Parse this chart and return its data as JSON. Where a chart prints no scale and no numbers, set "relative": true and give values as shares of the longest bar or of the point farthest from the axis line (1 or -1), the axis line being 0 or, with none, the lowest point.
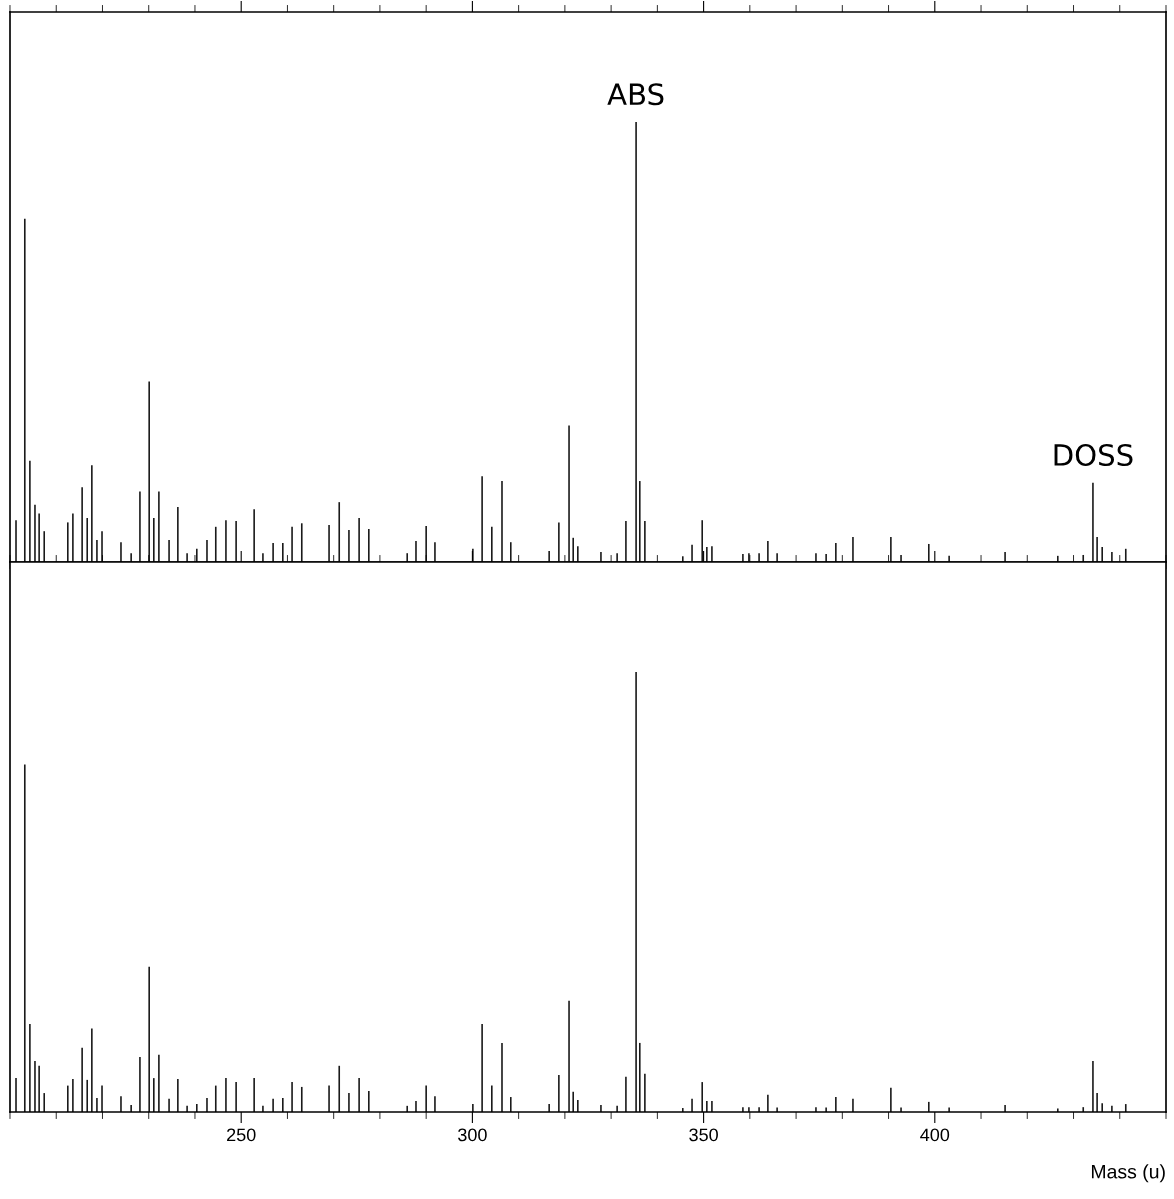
{
  "chart_data": [
    {
      "type": "bar",
      "relative": true,
      "color": "#1a1a1a",
      "xlim": [
        200,
        450
      ],
      "xticks": [
        250,
        300,
        350,
        400
      ],
      "tick_labels": false,
      "x": [
        201.3,
        203.2,
        204.3,
        205.4,
        206.3,
        207.4,
        212.5,
        213.6,
        215.6,
        216.7,
        217.7,
        218.8,
        219.9,
        224.0,
        226.2,
        228.1,
        230.1,
        231.1,
        232.2,
        234.4,
        236.3,
        238.3,
        240.4,
        242.6,
        244.5,
        246.7,
        248.9,
        252.8,
        254.7,
        256.9,
        259.0,
        261.0,
        263.1,
        269.0,
        271.2,
        273.3,
        275.5,
        277.6,
        285.9,
        287.8,
        290.0,
        291.9,
        300.1,
        302.1,
        304.2,
        306.4,
        308.3,
        316.6,
        318.7,
        320.9,
        321.8,
        322.8,
        327.8,
        331.3,
        333.2,
        335.4,
        336.2,
        337.3,
        345.5,
        347.5,
        349.7,
        350.7,
        351.8,
        358.5,
        359.8,
        362.0,
        363.9,
        365.9,
        374.3,
        376.5,
        378.6,
        382.3,
        390.5,
        392.7,
        398.7,
        403.1,
        415.2,
        426.6,
        432.1,
        434.2,
        435.1,
        436.2,
        438.3,
        441.3
      ],
      "values": [
        0.095,
        0.78,
        0.23,
        0.13,
        0.11,
        0.07,
        0.09,
        0.11,
        0.17,
        0.1,
        0.22,
        0.05,
        0.07,
        0.045,
        0.02,
        0.16,
        0.41,
        0.1,
        0.16,
        0.05,
        0.125,
        0.02,
        0.03,
        0.05,
        0.08,
        0.095,
        0.093,
        0.12,
        0.02,
        0.043,
        0.043,
        0.08,
        0.088,
        0.084,
        0.136,
        0.073,
        0.1,
        0.075,
        0.02,
        0.048,
        0.082,
        0.045,
        0.03,
        0.195,
        0.08,
        0.184,
        0.045,
        0.025,
        0.09,
        0.31,
        0.055,
        0.036,
        0.023,
        0.02,
        0.093,
        1.0,
        0.184,
        0.093,
        0.013,
        0.039,
        0.095,
        0.034,
        0.036,
        0.018,
        0.02,
        0.02,
        0.048,
        0.02,
        0.02,
        0.018,
        0.043,
        0.057,
        0.057,
        0.016,
        0.041,
        0.014,
        0.023,
        0.014,
        0.016,
        0.18,
        0.057,
        0.034,
        0.023,
        0.03
      ],
      "annotations": [
        {
          "text": "ABS",
          "x": 335.4,
          "y": 1.0
        },
        {
          "text": "DOSS",
          "x": 434.2,
          "y": 0.18
        }
      ]
    },
    {
      "type": "bar",
      "relative": true,
      "color": "#1a1a1a",
      "xlim": [
        200,
        450
      ],
      "xticks": [
        250,
        300,
        350,
        400
      ],
      "tick_labels": "x",
      "xlabel": "Mass (u)",
      "x": [
        201.3,
        203.2,
        204.3,
        205.4,
        206.3,
        207.4,
        212.5,
        213.6,
        215.6,
        216.7,
        217.7,
        218.8,
        219.9,
        224.0,
        226.2,
        228.1,
        230.1,
        231.1,
        232.2,
        234.4,
        236.3,
        238.3,
        240.4,
        242.6,
        244.5,
        246.7,
        248.9,
        252.8,
        254.7,
        256.9,
        259.0,
        261.0,
        263.1,
        269.0,
        271.2,
        273.3,
        275.5,
        277.6,
        285.9,
        287.8,
        290.0,
        291.9,
        300.1,
        302.1,
        304.2,
        306.4,
        308.3,
        316.6,
        318.7,
        320.9,
        321.8,
        322.8,
        327.8,
        331.3,
        333.2,
        335.4,
        336.2,
        337.3,
        345.5,
        347.5,
        349.7,
        350.7,
        351.8,
        358.5,
        359.8,
        362.0,
        363.9,
        365.9,
        374.3,
        376.5,
        378.6,
        382.3,
        390.5,
        392.7,
        398.7,
        403.1,
        415.2,
        426.6,
        432.1,
        434.2,
        435.1,
        436.2,
        438.3,
        441.3
      ],
      "values": [
        0.077,
        0.79,
        0.2,
        0.116,
        0.105,
        0.043,
        0.06,
        0.075,
        0.146,
        0.073,
        0.19,
        0.032,
        0.06,
        0.036,
        0.016,
        0.125,
        0.33,
        0.077,
        0.13,
        0.03,
        0.075,
        0.014,
        0.018,
        0.032,
        0.06,
        0.077,
        0.068,
        0.077,
        0.014,
        0.03,
        0.032,
        0.068,
        0.057,
        0.06,
        0.105,
        0.043,
        0.077,
        0.048,
        0.014,
        0.025,
        0.06,
        0.036,
        0.018,
        0.2,
        0.06,
        0.157,
        0.034,
        0.018,
        0.084,
        0.253,
        0.046,
        0.027,
        0.016,
        0.014,
        0.08,
        1.0,
        0.157,
        0.087,
        0.009,
        0.03,
        0.068,
        0.025,
        0.025,
        0.011,
        0.011,
        0.011,
        0.039,
        0.01,
        0.011,
        0.01,
        0.034,
        0.03,
        0.055,
        0.01,
        0.023,
        0.01,
        0.016,
        0.008,
        0.011,
        0.116,
        0.043,
        0.02,
        0.014,
        0.018
      ]
    }
  ]
}
